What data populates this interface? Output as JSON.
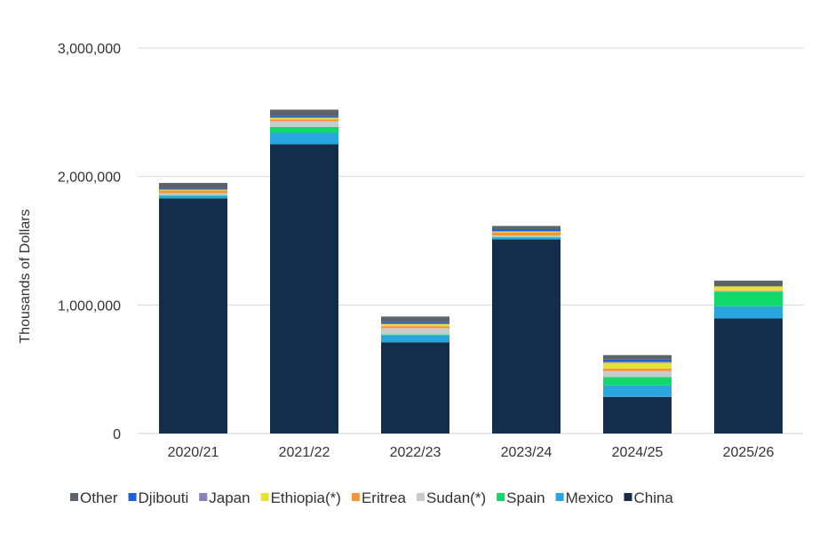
{
  "chart_data": {
    "type": "bar",
    "stacked": true,
    "title": "",
    "xlabel": "",
    "ylabel": "Thousands of Dollars",
    "ylim": [
      0,
      3000000
    ],
    "yticks": [
      0,
      1000000,
      2000000,
      3000000
    ],
    "ytick_labels": [
      "0",
      "1,000,000",
      "2,000,000",
      "3,000,000"
    ],
    "grid": true,
    "legend_position": "bottom",
    "categories": [
      "2020/21",
      "2021/22",
      "2022/23",
      "2023/24",
      "2024/25",
      "2025/26"
    ],
    "series": [
      {
        "name": "China",
        "color": "#132d4b",
        "values": [
          1830000,
          2250000,
          710000,
          1510000,
          285000,
          895000
        ]
      },
      {
        "name": "Mexico",
        "color": "#2aa6df",
        "values": [
          20000,
          90000,
          55000,
          15000,
          90000,
          95000
        ]
      },
      {
        "name": "Spain",
        "color": "#10d96a",
        "values": [
          5000,
          45000,
          5000,
          5000,
          65000,
          115000
        ]
      },
      {
        "name": "Sudan(*)",
        "color": "#c6cbd0",
        "values": [
          15000,
          45000,
          50000,
          10000,
          45000,
          5000
        ]
      },
      {
        "name": "Eritrea",
        "color": "#f7933a",
        "values": [
          20000,
          15000,
          15000,
          25000,
          20000,
          5000
        ]
      },
      {
        "name": "Ethiopia(*)",
        "color": "#e6e337",
        "values": [
          5000,
          10000,
          15000,
          5000,
          45000,
          30000
        ]
      },
      {
        "name": "Japan",
        "color": "#8d7db8",
        "values": [
          5000,
          5000,
          5000,
          5000,
          10000,
          0
        ]
      },
      {
        "name": "Djibouti",
        "color": "#1a63d6",
        "values": [
          5000,
          10000,
          10000,
          15000,
          15000,
          0
        ]
      },
      {
        "name": "Other",
        "color": "#5c636b",
        "values": [
          45000,
          50000,
          45000,
          25000,
          35000,
          45000
        ]
      }
    ],
    "legend_order": [
      "Other",
      "Djibouti",
      "Japan",
      "Ethiopia(*)",
      "Eritrea",
      "Sudan(*)",
      "Spain",
      "Mexico",
      "China"
    ]
  }
}
